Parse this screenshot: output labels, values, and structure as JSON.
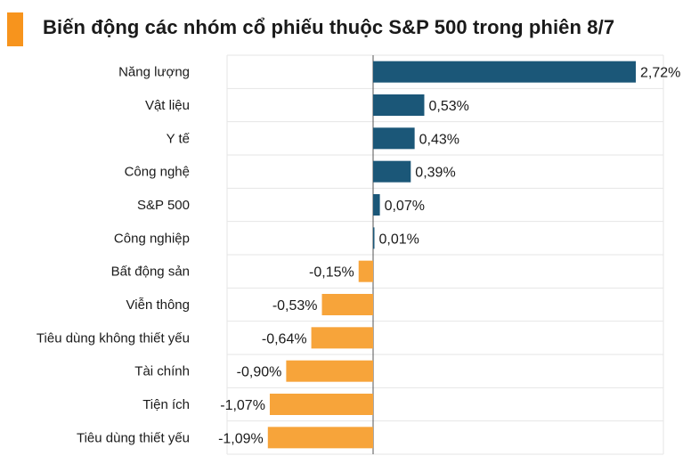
{
  "title": "Biến động các nhóm cổ phiếu thuộc S&P 500 trong phiên 8/7",
  "colors": {
    "accent": "#F7941D",
    "positive": "#1B5778",
    "negative": "#F7A43A",
    "grid": "#E6E6E6",
    "zero": "#555555"
  },
  "chart_data": {
    "type": "bar",
    "orientation": "horizontal",
    "categories": [
      "Năng lượng",
      "Vật liệu",
      "Y tế",
      "Công nghệ",
      "S&P 500",
      "Công nghiệp",
      "Bất động sản",
      "Viễn thông",
      "Tiêu dùng không thiết yếu",
      "Tài chính",
      "Tiện ích",
      "Tiêu dùng thiết yếu"
    ],
    "values": [
      2.72,
      0.53,
      0.43,
      0.39,
      0.07,
      0.01,
      -0.15,
      -0.53,
      -0.64,
      -0.9,
      -1.07,
      -1.09
    ],
    "value_labels": [
      "2,72%",
      "0,53%",
      "0,43%",
      "0,39%",
      "0,07%",
      "0,01%",
      "-0,15%",
      "-0,53%",
      "-0,64%",
      "-0,90%",
      "-1,07%",
      "-1,09%"
    ],
    "xlim": [
      -1.35,
      2.72
    ],
    "grid": true,
    "legend": "none"
  }
}
